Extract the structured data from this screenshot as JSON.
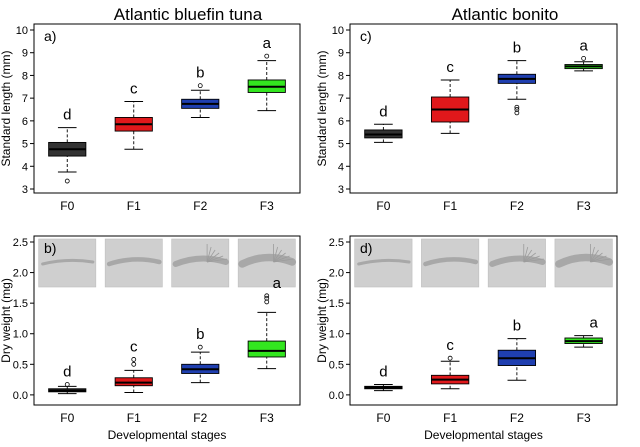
{
  "column_titles": [
    "Atlantic bluefin tuna",
    "Atlantic bonito"
  ],
  "colors": {
    "F0": "#333333",
    "F1": "#e0181b",
    "F2": "#1f3fb0",
    "F3": "#33e61f",
    "photo_bg": "#cfcfcf"
  },
  "chart_data": [
    {
      "type": "box",
      "panel_label": "a)",
      "species": "Atlantic bluefin tuna",
      "ylabel": "Standard length (mm)",
      "xlabel": "",
      "ylim": [
        3,
        10
      ],
      "yticks": [
        3,
        4,
        5,
        6,
        7,
        8,
        9,
        10
      ],
      "categories": [
        "F0",
        "F1",
        "F2",
        "F3"
      ],
      "boxes": [
        {
          "stage": "F0",
          "whisker_low": 3.75,
          "q1": 4.45,
          "median": 4.75,
          "q3": 5.05,
          "whisker_high": 5.7,
          "outliers": [
            3.35
          ]
        },
        {
          "stage": "F1",
          "whisker_low": 4.75,
          "q1": 5.55,
          "median": 5.85,
          "q3": 6.15,
          "whisker_high": 6.85,
          "outliers": []
        },
        {
          "stage": "F2",
          "whisker_low": 6.15,
          "q1": 6.55,
          "median": 6.75,
          "q3": 6.95,
          "whisker_high": 7.35,
          "outliers": [
            7.55
          ]
        },
        {
          "stage": "F3",
          "whisker_low": 6.45,
          "q1": 7.25,
          "median": 7.5,
          "q3": 7.8,
          "whisker_high": 8.65,
          "outliers": [
            8.85
          ]
        }
      ],
      "annotations": [
        "d",
        "c",
        "b",
        "a"
      ],
      "photos": false
    },
    {
      "type": "box",
      "panel_label": "c)",
      "species": "Atlantic bonito",
      "ylabel": "Standard length (mm)",
      "xlabel": "",
      "ylim": [
        3,
        10
      ],
      "yticks": [
        3,
        4,
        5,
        6,
        7,
        8,
        9,
        10
      ],
      "categories": [
        "F0",
        "F1",
        "F2",
        "F3"
      ],
      "boxes": [
        {
          "stage": "F0",
          "whisker_low": 5.05,
          "q1": 5.25,
          "median": 5.4,
          "q3": 5.6,
          "whisker_high": 5.85,
          "outliers": []
        },
        {
          "stage": "F1",
          "whisker_low": 5.45,
          "q1": 5.95,
          "median": 6.5,
          "q3": 7.05,
          "whisker_high": 7.8,
          "outliers": []
        },
        {
          "stage": "F2",
          "whisker_low": 6.95,
          "q1": 7.65,
          "median": 7.85,
          "q3": 8.05,
          "whisker_high": 8.65,
          "outliers": [
            6.35,
            6.5,
            6.6
          ]
        },
        {
          "stage": "F3",
          "whisker_low": 8.2,
          "q1": 8.3,
          "median": 8.4,
          "q3": 8.48,
          "whisker_high": 8.6,
          "outliers": [
            8.75
          ]
        }
      ],
      "annotations": [
        "d",
        "c",
        "b",
        "a"
      ],
      "photos": false
    },
    {
      "type": "box",
      "panel_label": "b)",
      "species": "Atlantic bluefin tuna",
      "ylabel": "Dry weight (mg)",
      "xlabel": "Developmental stages",
      "ylim": [
        -0.1,
        2.5
      ],
      "yticks": [
        0.0,
        0.5,
        1.0,
        1.5,
        2.0,
        2.5
      ],
      "categories": [
        "F0",
        "F1",
        "F2",
        "F3"
      ],
      "boxes": [
        {
          "stage": "F0",
          "whisker_low": 0.02,
          "q1": 0.05,
          "median": 0.07,
          "q3": 0.1,
          "whisker_high": 0.14,
          "outliers": [
            0.17
          ]
        },
        {
          "stage": "F1",
          "whisker_low": 0.04,
          "q1": 0.15,
          "median": 0.2,
          "q3": 0.28,
          "whisker_high": 0.4,
          "outliers": [
            0.5,
            0.58
          ]
        },
        {
          "stage": "F2",
          "whisker_low": 0.2,
          "q1": 0.35,
          "median": 0.42,
          "q3": 0.5,
          "whisker_high": 0.7,
          "outliers": [
            0.78
          ]
        },
        {
          "stage": "F3",
          "whisker_low": 0.43,
          "q1": 0.62,
          "median": 0.72,
          "q3": 0.88,
          "whisker_high": 1.35,
          "outliers": [
            1.52,
            1.58,
            1.62
          ]
        }
      ],
      "annotations": [
        "d",
        "c",
        "b",
        "a"
      ],
      "photos": true
    },
    {
      "type": "box",
      "panel_label": "d)",
      "species": "Atlantic bonito",
      "ylabel": "Dry weight (mg)",
      "xlabel": "Developmental stages",
      "ylim": [
        -0.1,
        2.5
      ],
      "yticks": [
        0.0,
        0.5,
        1.0,
        1.5,
        2.0,
        2.5
      ],
      "categories": [
        "F0",
        "F1",
        "F2",
        "F3"
      ],
      "boxes": [
        {
          "stage": "F0",
          "whisker_low": 0.07,
          "q1": 0.1,
          "median": 0.12,
          "q3": 0.14,
          "whisker_high": 0.17,
          "outliers": []
        },
        {
          "stage": "F1",
          "whisker_low": 0.1,
          "q1": 0.18,
          "median": 0.25,
          "q3": 0.32,
          "whisker_high": 0.55,
          "outliers": [
            0.6
          ]
        },
        {
          "stage": "F2",
          "whisker_low": 0.24,
          "q1": 0.48,
          "median": 0.6,
          "q3": 0.73,
          "whisker_high": 0.92,
          "outliers": []
        },
        {
          "stage": "F3",
          "whisker_low": 0.78,
          "q1": 0.84,
          "median": 0.88,
          "q3": 0.93,
          "whisker_high": 0.97,
          "outliers": []
        }
      ],
      "annotations": [
        "d",
        "c",
        "b",
        "a"
      ],
      "photos": true
    }
  ]
}
